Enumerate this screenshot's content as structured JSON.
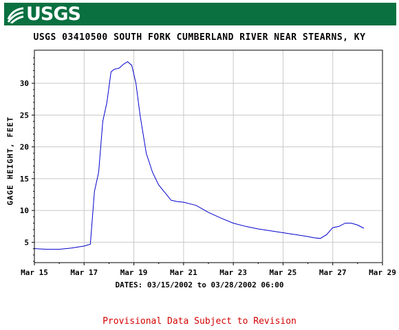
{
  "header": {
    "logo_text": "USGS",
    "brand_color": "#0a7040"
  },
  "chart_data": {
    "type": "line",
    "title": "USGS 03410500 SOUTH FORK CUMBERLAND RIVER NEAR STEARNS, KY",
    "xlabel": "DATES: 03/15/2002 to 03/28/2002 06:00",
    "ylabel": "GAGE HEIGHT, FEET",
    "x_tick_labels": [
      "Mar 15",
      "Mar 17",
      "Mar 19",
      "Mar 21",
      "Mar 23",
      "Mar 25",
      "Mar 27",
      "Mar 29"
    ],
    "y_tick_labels": [
      "5",
      "10",
      "15",
      "20",
      "25",
      "30"
    ],
    "y_ticks": [
      5,
      10,
      15,
      20,
      25,
      30
    ],
    "xlim": [
      "2002-03-15",
      "2002-03-29"
    ],
    "ylim": [
      1.8,
      35.2
    ],
    "grid": true,
    "line_color": "#0000cc",
    "series": [
      {
        "x": [
          "03-15 00:00",
          "03-15 12:00",
          "03-16 00:00",
          "03-16 12:00",
          "03-17 00:00",
          "03-17 06:00",
          "03-17 10:00",
          "03-17 14:00",
          "03-17 18:00",
          "03-17 22:00",
          "03-18 02:00",
          "03-18 05:00",
          "03-18 08:00",
          "03-18 10:00",
          "03-18 14:00",
          "03-18 18:00",
          "03-18 22:00",
          "03-19 02:00",
          "03-19 06:00",
          "03-19 12:00",
          "03-19 18:00",
          "03-20 00:00",
          "03-20 06:00",
          "03-20 12:00",
          "03-20 18:00",
          "03-21 00:00",
          "03-21 12:00",
          "03-22 00:00",
          "03-22 12:00",
          "03-23 00:00",
          "03-23 12:00",
          "03-24 00:00",
          "03-24 12:00",
          "03-25 00:00",
          "03-25 12:00",
          "03-26 00:00",
          "03-26 06:00",
          "03-26 12:00",
          "03-26 18:00",
          "03-27 00:00",
          "03-27 06:00",
          "03-27 12:00",
          "03-27 18:00",
          "03-28 00:00",
          "03-28 06:00"
        ],
        "values": [
          4.0,
          3.9,
          3.9,
          4.1,
          4.4,
          4.7,
          13.0,
          16.0,
          24.0,
          27.0,
          31.8,
          32.2,
          32.3,
          32.4,
          33.0,
          33.4,
          32.8,
          30.0,
          25.0,
          19.0,
          16.0,
          14.0,
          12.8,
          11.6,
          11.4,
          11.3,
          10.8,
          9.7,
          8.8,
          8.0,
          7.5,
          7.1,
          6.8,
          6.5,
          6.2,
          5.9,
          5.7,
          5.6,
          6.2,
          7.3,
          7.5,
          8.0,
          8.0,
          7.7,
          7.2
        ]
      }
    ]
  },
  "footer": {
    "notice": "Provisional Data Subject to Revision",
    "notice_color": "#d40000"
  }
}
